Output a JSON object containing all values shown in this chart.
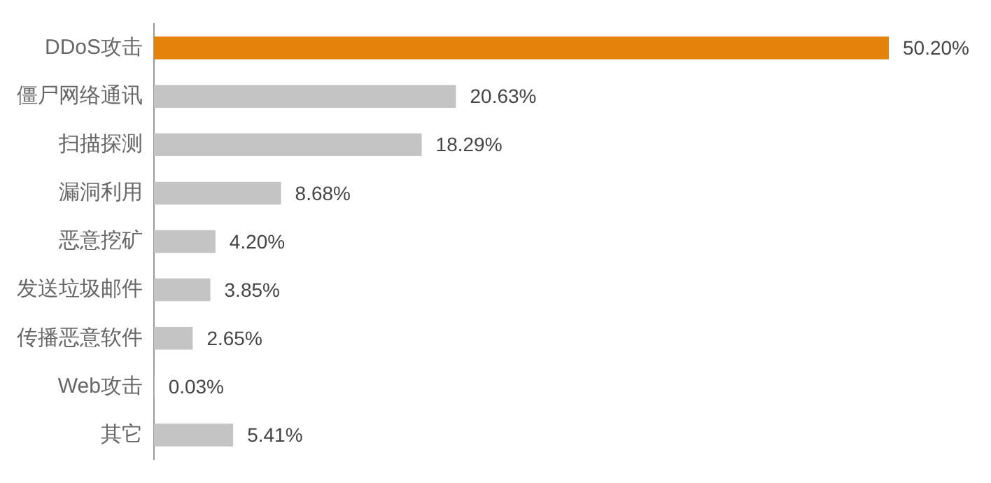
{
  "chart_data": {
    "type": "bar",
    "orientation": "horizontal",
    "categories": [
      "DDoS攻击",
      "僵尸网络通讯",
      "扫描探测",
      "漏洞利用",
      "恶意挖矿",
      "发送垃圾邮件",
      "传播恶意软件",
      "Web攻击",
      "其它"
    ],
    "values": [
      50.2,
      20.63,
      18.29,
      8.68,
      4.2,
      3.85,
      2.65,
      0.03,
      5.41
    ],
    "colors": [
      "#e5820a",
      "#c4c4c4",
      "#c4c4c4",
      "#c4c4c4",
      "#c4c4c4",
      "#c4c4c4",
      "#c4c4c4",
      "#c4c4c4",
      "#c4c4c4"
    ],
    "value_labels": [
      "50.20%",
      "20.63%",
      "18.29%",
      "8.68%",
      "4.20%",
      "3.85%",
      "2.65%",
      "0.03%",
      "5.41%"
    ],
    "grid": false,
    "legend": false
  }
}
